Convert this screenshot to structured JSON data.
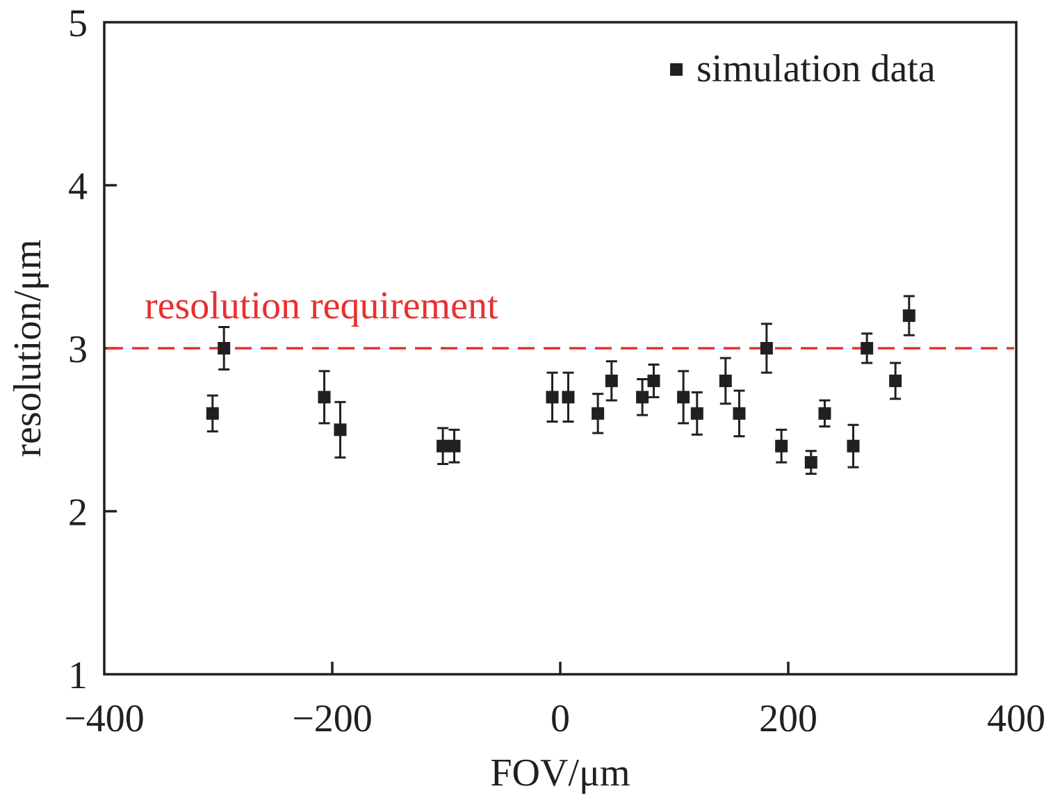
{
  "chart_data": {
    "type": "scatter",
    "title": "",
    "xlabel": "FOV/μm",
    "ylabel": "resolution/μm",
    "xlim": [
      -400,
      400
    ],
    "ylim": [
      1,
      5
    ],
    "x_ticks": [
      -400,
      -200,
      0,
      200,
      400
    ],
    "x_tick_labels": [
      "−400",
      "−200",
      "0",
      "200",
      "400"
    ],
    "y_ticks": [
      1,
      2,
      3,
      4,
      5
    ],
    "y_tick_labels": [
      "1",
      "2",
      "3",
      "4",
      "5"
    ],
    "grid": false,
    "legend": {
      "position": "top-right",
      "entries": [
        "simulation data"
      ]
    },
    "series": [
      {
        "name": "simulation data",
        "marker": "square",
        "color": "#231f20",
        "points": [
          {
            "x": -305,
            "y": 2.6,
            "err": 0.11
          },
          {
            "x": -295,
            "y": 3.0,
            "err": 0.13
          },
          {
            "x": -207,
            "y": 2.7,
            "err": 0.16
          },
          {
            "x": -193,
            "y": 2.5,
            "err": 0.17
          },
          {
            "x": -103,
            "y": 2.4,
            "err": 0.11
          },
          {
            "x": -93,
            "y": 2.4,
            "err": 0.1
          },
          {
            "x": -7,
            "y": 2.7,
            "err": 0.15
          },
          {
            "x": 7,
            "y": 2.7,
            "err": 0.15
          },
          {
            "x": 33,
            "y": 2.6,
            "err": 0.12
          },
          {
            "x": 45,
            "y": 2.8,
            "err": 0.12
          },
          {
            "x": 72,
            "y": 2.7,
            "err": 0.11
          },
          {
            "x": 82,
            "y": 2.8,
            "err": 0.1
          },
          {
            "x": 108,
            "y": 2.7,
            "err": 0.16
          },
          {
            "x": 120,
            "y": 2.6,
            "err": 0.13
          },
          {
            "x": 145,
            "y": 2.8,
            "err": 0.14
          },
          {
            "x": 157,
            "y": 2.6,
            "err": 0.14
          },
          {
            "x": 181,
            "y": 3.0,
            "err": 0.15
          },
          {
            "x": 194,
            "y": 2.4,
            "err": 0.1
          },
          {
            "x": 220,
            "y": 2.3,
            "err": 0.07
          },
          {
            "x": 232,
            "y": 2.6,
            "err": 0.08
          },
          {
            "x": 257,
            "y": 2.4,
            "err": 0.13
          },
          {
            "x": 269,
            "y": 3.0,
            "err": 0.09
          },
          {
            "x": 294,
            "y": 2.8,
            "err": 0.11
          },
          {
            "x": 306,
            "y": 3.2,
            "err": 0.12
          }
        ]
      }
    ],
    "reference_line": {
      "y": 3,
      "label": "resolution requirement",
      "color": "#e8302f",
      "style": "dashed"
    }
  }
}
